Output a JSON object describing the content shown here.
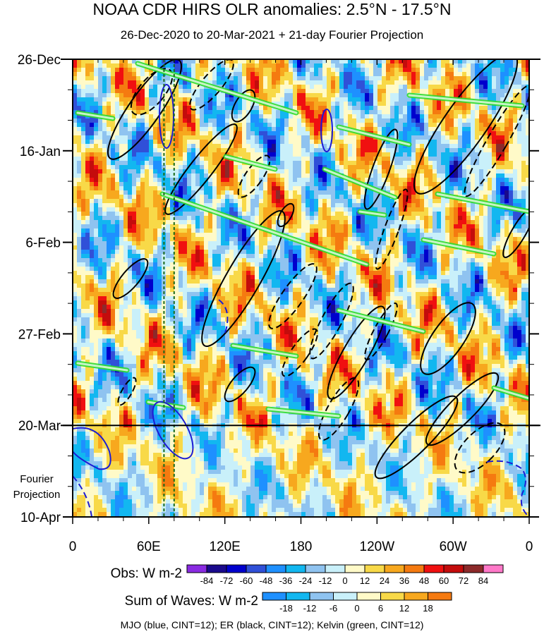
{
  "chart_data": {
    "type": "heatmap",
    "title": "NOAA CDR HIRS OLR anomalies: 2.5°N - 17.5°N",
    "subtitle": "26-Dec-2020 to 20-Mar-2021 + 21-day Fourier Projection",
    "x_ticks": [
      "0",
      "60E",
      "120E",
      "180",
      "120W",
      "60W",
      "0"
    ],
    "x_range_deg_east": [
      0,
      360
    ],
    "y_ticks": [
      "26-Dec",
      "16-Jan",
      "6-Feb",
      "27-Feb",
      "20-Mar",
      "10-Apr"
    ],
    "y_tick_days": [
      0,
      21,
      42,
      63,
      84,
      105
    ],
    "projection_label": [
      "Fourier",
      "Projection"
    ],
    "observation_end": "20-Mar",
    "reference_lines_lon": [
      72,
      80
    ],
    "obs_legend": {
      "label": "Obs: W m-2",
      "levels": [
        "-84",
        "-72",
        "-60",
        "-48",
        "-36",
        "-24",
        "-12",
        "0",
        "12",
        "24",
        "36",
        "48",
        "60",
        "72",
        "84"
      ],
      "colors": [
        "#8a2be2",
        "#1a0a8c",
        "#0000cd",
        "#3050d8",
        "#1e90ff",
        "#12b7f0",
        "#8fc3f0",
        "#c9f0fa",
        "#fffac8",
        "#f8d948",
        "#f7a81e",
        "#f57a10",
        "#f01010",
        "#c40c0c",
        "#8c2a2a",
        "#ff78c8"
      ]
    },
    "waves_legend": {
      "label": "Sum of Waves: W m-2",
      "levels": [
        "-18",
        "-12",
        "-6",
        "0",
        "6",
        "12",
        "18"
      ],
      "colors": [
        "#1e90ff",
        "#12b7f0",
        "#8fc3f0",
        "#c9f0fa",
        "#fffac8",
        "#f8d948",
        "#f7a81e",
        "#f57a10"
      ]
    },
    "contours_note": "MJO (blue, CINT=12); ER (black, CINT=12); Kelvin (green, CINT=12)",
    "contour_colors": {
      "mjo": "#1c1cd4",
      "er": "#000000",
      "kelvin": "#2edc2e"
    }
  }
}
